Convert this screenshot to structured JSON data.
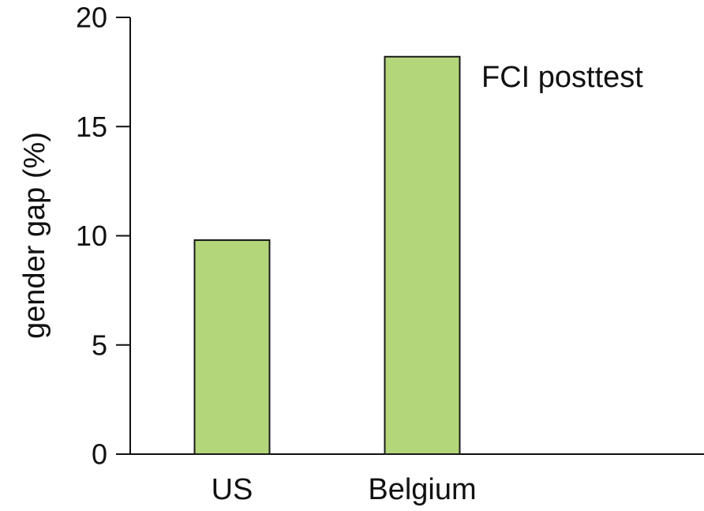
{
  "chart_data": {
    "type": "bar",
    "title": "",
    "annotation": "FCI posttest",
    "xlabel": "",
    "ylabel": "gender gap (%)",
    "categories": [
      "US",
      "Belgium"
    ],
    "values": [
      9.8,
      18.2
    ],
    "ylim": [
      0,
      20
    ],
    "yticks": [
      "0",
      "5",
      "10",
      "15",
      "20"
    ],
    "grid": false,
    "bar_color": "#b3d67a",
    "bar_edge_color": "#1a1a1a"
  }
}
